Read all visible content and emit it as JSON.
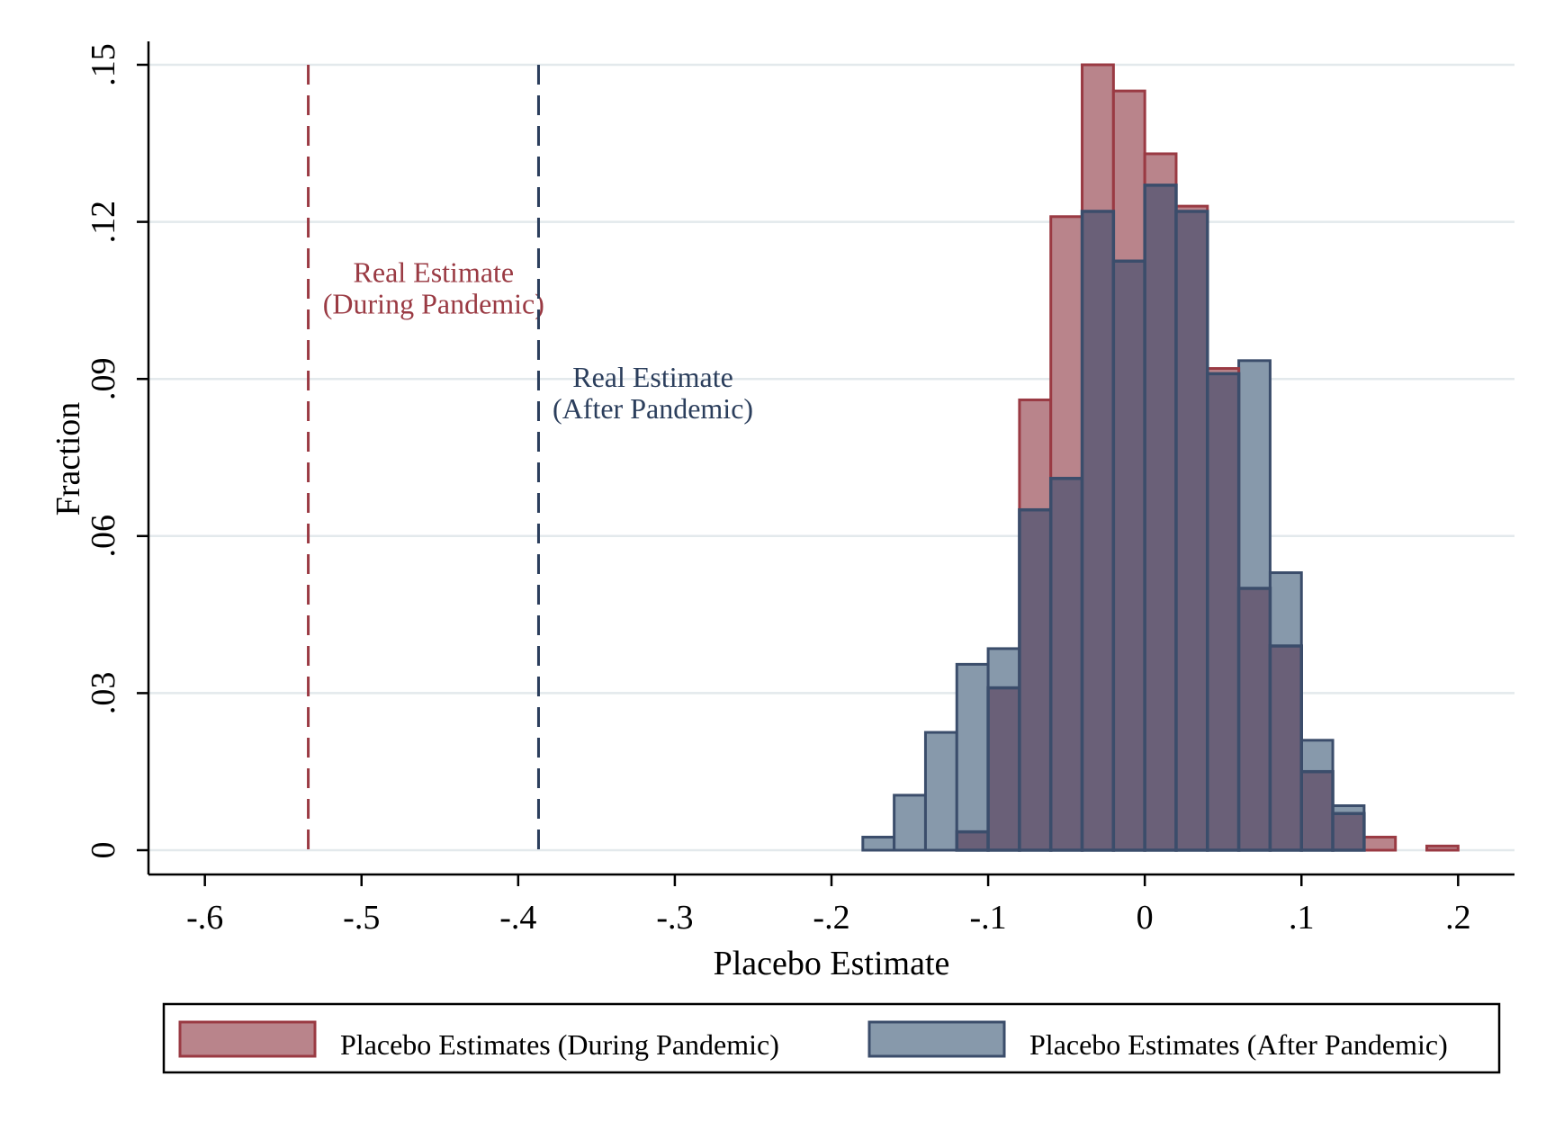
{
  "chart_data": {
    "type": "bar",
    "subtype": "overlaid histogram",
    "xlabel": "Placebo Estimate",
    "ylabel": "Fraction",
    "xlim": [
      -0.636,
      0.236
    ],
    "ylim": [
      0,
      0.15
    ],
    "x_ticks": [
      -0.6,
      -0.5,
      -0.4,
      -0.3,
      -0.2,
      -0.1,
      0,
      0.1,
      0.2
    ],
    "x_tick_labels": [
      "-.6",
      "-.5",
      "-.4",
      "-.3",
      "-.2",
      "-.1",
      "0",
      ".1",
      ".2"
    ],
    "y_ticks": [
      0,
      0.03,
      0.06,
      0.09,
      0.12,
      0.15
    ],
    "y_tick_labels": [
      "0",
      ".03",
      ".06",
      ".09",
      ".12",
      ".15"
    ],
    "grid": true,
    "bin_width": 0.02,
    "series": [
      {
        "name": "Placebo Estimates (During Pandemic)",
        "fill": "#b9848b",
        "stroke": "#9a3a43",
        "bins": [
          {
            "x0": -0.12,
            "y": 0.0035
          },
          {
            "x0": -0.1,
            "y": 0.031
          },
          {
            "x0": -0.08,
            "y": 0.086
          },
          {
            "x0": -0.06,
            "y": 0.121
          },
          {
            "x0": -0.04,
            "y": 0.15
          },
          {
            "x0": -0.02,
            "y": 0.145
          },
          {
            "x0": 0.0,
            "y": 0.133
          },
          {
            "x0": 0.02,
            "y": 0.123
          },
          {
            "x0": 0.04,
            "y": 0.092
          },
          {
            "x0": 0.06,
            "y": 0.05
          },
          {
            "x0": 0.08,
            "y": 0.039
          },
          {
            "x0": 0.1,
            "y": 0.015
          },
          {
            "x0": 0.12,
            "y": 0.007
          },
          {
            "x0": 0.14,
            "y": 0.0025
          },
          {
            "x0": 0.18,
            "y": 0.0008
          }
        ]
      },
      {
        "name": "Placebo Estimates (After Pandemic)",
        "fill": "#8799ab",
        "stroke": "#3b4d6b",
        "bins": [
          {
            "x0": -0.18,
            "y": 0.0025
          },
          {
            "x0": -0.16,
            "y": 0.0105
          },
          {
            "x0": -0.14,
            "y": 0.0225
          },
          {
            "x0": -0.12,
            "y": 0.0355
          },
          {
            "x0": -0.1,
            "y": 0.0385
          },
          {
            "x0": -0.08,
            "y": 0.065
          },
          {
            "x0": -0.06,
            "y": 0.071
          },
          {
            "x0": -0.04,
            "y": 0.122
          },
          {
            "x0": -0.02,
            "y": 0.1125
          },
          {
            "x0": 0.0,
            "y": 0.127
          },
          {
            "x0": 0.02,
            "y": 0.122
          },
          {
            "x0": 0.04,
            "y": 0.091
          },
          {
            "x0": 0.06,
            "y": 0.0935
          },
          {
            "x0": 0.08,
            "y": 0.053
          },
          {
            "x0": 0.1,
            "y": 0.021
          },
          {
            "x0": 0.12,
            "y": 0.0085
          }
        ]
      }
    ],
    "overlap_fill": "#6a6078",
    "reference_lines": [
      {
        "x": -0.534,
        "color": "#9a3a43",
        "style": "dashed",
        "label_lines": [
          "Real Estimate",
          "(During Pandemic)"
        ],
        "label_x": -0.454,
        "label_y": 0.1085
      },
      {
        "x": -0.387,
        "color": "#2b3e5c",
        "style": "dashed",
        "label_lines": [
          "Real Estimate",
          "(After Pandemic)"
        ],
        "label_x": -0.314,
        "label_y": 0.0885
      }
    ],
    "legend_position": "bottom"
  }
}
